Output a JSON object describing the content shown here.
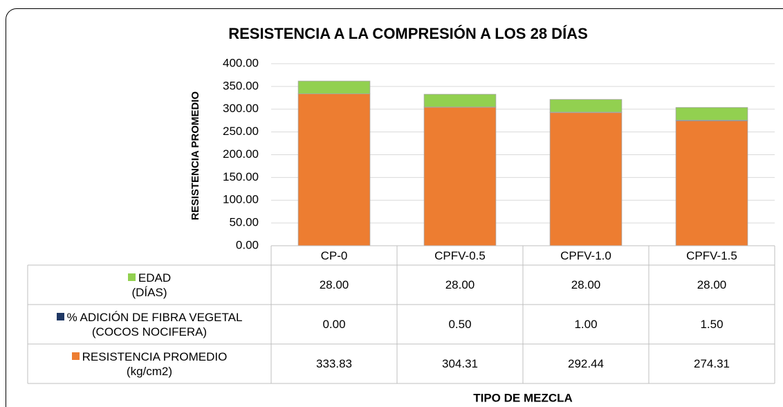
{
  "chart_data": {
    "type": "stacked_bar",
    "title": "RESISTENCIA A LA COMPRESIÓN A LOS 28 DÍAS",
    "y_label": "RESISTENCIA PROMEDIO",
    "x_label": "TIPO DE MEZCLA",
    "categories": [
      "CP-0",
      "CPFV-0.5",
      "CPFV-1.0",
      "CPFV-1.5"
    ],
    "series": [
      {
        "name": "RESISTENCIA PROMEDIO\n(kg/cm2)",
        "color": "#ED7D31",
        "values": [
          333.83,
          304.31,
          292.44,
          274.31
        ],
        "value_labels": [
          "333.83",
          "304.31",
          "292.44",
          "274.31"
        ]
      },
      {
        "name": "% ADICIÓN DE FIBRA VEGETAL\n(COCOS NOCIFERA)",
        "color": "#1F3864",
        "values": [
          0,
          0.5,
          1,
          1.5
        ],
        "value_labels": [
          "0.00",
          "0.50",
          "1.00",
          "1.50"
        ]
      },
      {
        "name": "EDAD\n(DÍAS)",
        "color": "#92D050",
        "values": [
          28,
          28,
          28,
          28
        ],
        "value_labels": [
          "28.00",
          "28.00",
          "28.00",
          "28.00"
        ]
      }
    ],
    "ylim": [
      0,
      400
    ],
    "yticks": [
      {
        "value": 0,
        "label": "0.00"
      },
      {
        "value": 50,
        "label": "50.00"
      },
      {
        "value": 100,
        "label": "100.00"
      },
      {
        "value": 150,
        "label": "150.00"
      },
      {
        "value": 200,
        "label": "200.00"
      },
      {
        "value": 250,
        "label": "250.00"
      },
      {
        "value": 300,
        "label": "300.00"
      },
      {
        "value": 350,
        "label": "350.00"
      },
      {
        "value": 400,
        "label": "400.00"
      }
    ],
    "grid": true
  }
}
